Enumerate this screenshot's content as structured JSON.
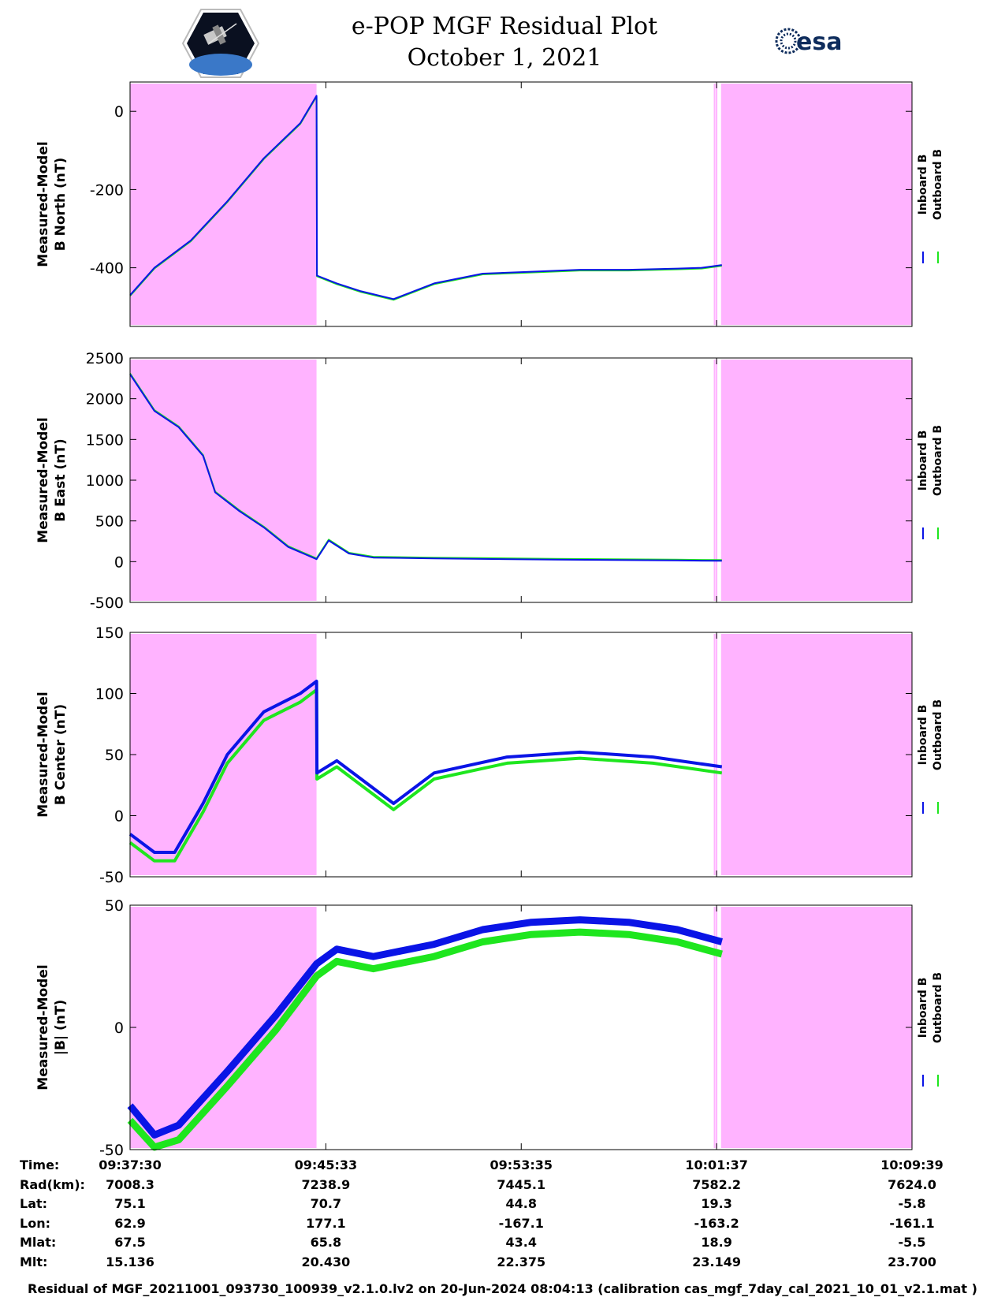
{
  "title": {
    "line1": "e-POP MGF Residual Plot",
    "line2": "October 1, 2021"
  },
  "logos": {
    "esa_text": "esa"
  },
  "colors": {
    "inboard": "#0a14e6",
    "outboard": "#1ee61e",
    "shade": "#ffb3ff"
  },
  "legend": {
    "inboard": "Inboard B",
    "outboard": "Outboard B"
  },
  "chart_data": [
    {
      "type": "line",
      "ylabel_line1": "Measured-Model",
      "ylabel_line2": "B North (nT)",
      "ylim": [
        -550,
        75
      ],
      "yticks": [
        0,
        -200,
        -400
      ],
      "x": [
        "09:37:30",
        "09:38:30",
        "09:40:00",
        "09:41:30",
        "09:43:00",
        "09:44:30",
        "09:45:10",
        "09:45:11",
        "09:46:00",
        "09:47:00",
        "09:48:20",
        "09:50:00",
        "09:52:00",
        "09:54:00",
        "09:56:00",
        "09:58:00",
        "10:00:00",
        "10:01:00",
        "10:01:50"
      ],
      "series": [
        {
          "name": "Inboard B",
          "values": [
            -470,
            -400,
            -330,
            -230,
            -120,
            -30,
            40,
            -420,
            -440,
            -460,
            -480,
            -440,
            -415,
            -410,
            -405,
            -405,
            -402,
            -400,
            -393
          ]
        },
        {
          "name": "Outboard B",
          "values": [
            -472,
            -402,
            -332,
            -232,
            -122,
            -32,
            38,
            -422,
            -442,
            -462,
            -482,
            -442,
            -417,
            -412,
            -407,
            -407,
            -404,
            -402,
            -395
          ]
        }
      ],
      "shaded_ranges": [
        [
          "09:37:30",
          "09:45:10"
        ],
        [
          "10:01:30",
          "10:01:33"
        ],
        [
          "10:01:35",
          "10:01:38"
        ],
        [
          "10:01:48",
          "10:09:39"
        ]
      ]
    },
    {
      "type": "line",
      "ylabel_line1": "Measured-Model",
      "ylabel_line2": "B East (nT)",
      "ylim": [
        -500,
        2500
      ],
      "yticks": [
        2500,
        2000,
        1500,
        1000,
        500,
        0,
        -500
      ],
      "x": [
        "09:37:30",
        "09:38:30",
        "09:39:30",
        "09:40:30",
        "09:41:00",
        "09:42:00",
        "09:43:00",
        "09:44:00",
        "09:45:10",
        "09:45:40",
        "09:46:30",
        "09:47:30",
        "09:50:00",
        "09:55:00",
        "10:00:00",
        "10:01:50"
      ],
      "series": [
        {
          "name": "Inboard B",
          "values": [
            2300,
            1850,
            1650,
            1300,
            850,
            620,
            420,
            180,
            30,
            260,
            100,
            50,
            40,
            25,
            15,
            10
          ]
        },
        {
          "name": "Outboard B",
          "values": [
            2310,
            1860,
            1660,
            1310,
            860,
            630,
            430,
            190,
            40,
            270,
            110,
            60,
            50,
            35,
            25,
            20
          ]
        }
      ]
    },
    {
      "type": "line",
      "ylabel_line1": "Measured-Model",
      "ylabel_line2": "B Center (nT)",
      "ylim": [
        -50,
        150
      ],
      "yticks": [
        150,
        100,
        50,
        0,
        -50
      ],
      "x": [
        "09:37:30",
        "09:38:30",
        "09:39:20",
        "09:40:30",
        "09:41:30",
        "09:43:00",
        "09:44:30",
        "09:45:10",
        "09:45:11",
        "09:46:00",
        "09:47:00",
        "09:48:20",
        "09:50:00",
        "09:53:00",
        "09:56:00",
        "09:59:00",
        "10:01:50"
      ],
      "series": [
        {
          "name": "Inboard B",
          "values": [
            -15,
            -30,
            -30,
            10,
            50,
            85,
            100,
            110,
            35,
            45,
            30,
            10,
            35,
            48,
            52,
            48,
            40
          ]
        },
        {
          "name": "Outboard B",
          "values": [
            -22,
            -37,
            -37,
            3,
            43,
            78,
            93,
            103,
            30,
            40,
            25,
            5,
            30,
            43,
            47,
            43,
            35
          ]
        }
      ]
    },
    {
      "type": "line",
      "ylabel_line1": "Measured-Model",
      "ylabel_line2": "|B| (nT)",
      "ylim": [
        -50,
        50
      ],
      "yticks": [
        50,
        0,
        -50
      ],
      "x": [
        "09:37:30",
        "09:38:30",
        "09:39:30",
        "09:41:30",
        "09:43:30",
        "09:45:10",
        "09:46:00",
        "09:47:30",
        "09:48:30",
        "09:50:00",
        "09:52:00",
        "09:54:00",
        "09:56:00",
        "09:58:00",
        "10:00:00",
        "10:01:50"
      ],
      "series": [
        {
          "name": "Inboard B",
          "values": [
            -32,
            -44,
            -40,
            -18,
            5,
            26,
            32,
            29,
            31,
            34,
            40,
            43,
            44,
            43,
            40,
            35
          ]
        },
        {
          "name": "Outboard B",
          "values": [
            -38,
            -49,
            -46,
            -24,
            -1,
            21,
            27,
            24,
            26,
            29,
            35,
            38,
            39,
            38,
            35,
            30
          ]
        }
      ]
    }
  ],
  "info_table": {
    "row_labels": [
      "Time:",
      "Rad(km):",
      "Lat:",
      "Lon:",
      "Mlat:",
      "Mlt:"
    ],
    "columns": [
      [
        "09:37:30",
        "7008.3",
        "75.1",
        "62.9",
        "67.5",
        "15.136"
      ],
      [
        "09:45:33",
        "7238.9",
        "70.7",
        "177.1",
        "65.8",
        "20.430"
      ],
      [
        "09:53:35",
        "7445.1",
        "44.8",
        "-167.1",
        "43.4",
        "22.375"
      ],
      [
        "10:01:37",
        "7582.2",
        "19.3",
        "-163.2",
        "18.9",
        "23.149"
      ],
      [
        "10:09:39",
        "7624.0",
        "-5.8",
        "-161.1",
        "-5.5",
        "23.700"
      ]
    ]
  },
  "footer": "Residual of MGF_20211001_093730_100939_v2.1.0.lv2 on 20-Jun-2024 08:04:13 (calibration cas_mgf_7day_cal_2021_10_01_v2.1.mat )"
}
